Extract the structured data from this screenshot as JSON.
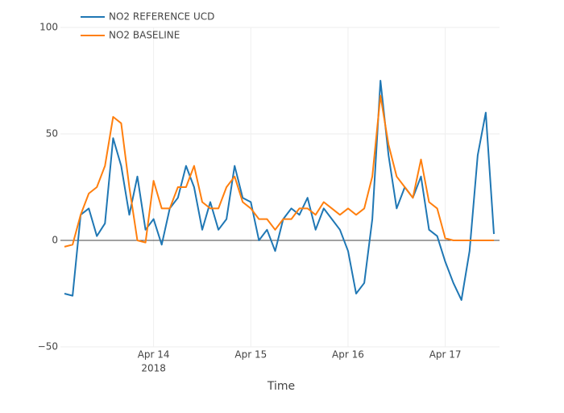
{
  "chart_data": {
    "type": "line",
    "xlabel": "Time",
    "x": [
      "2018-04-13 02:00",
      "2018-04-13 04:00",
      "2018-04-13 06:00",
      "2018-04-13 08:00",
      "2018-04-13 10:00",
      "2018-04-13 12:00",
      "2018-04-13 14:00",
      "2018-04-13 16:00",
      "2018-04-13 18:00",
      "2018-04-13 20:00",
      "2018-04-13 22:00",
      "2018-04-14 00:00",
      "2018-04-14 02:00",
      "2018-04-14 04:00",
      "2018-04-14 06:00",
      "2018-04-14 08:00",
      "2018-04-14 10:00",
      "2018-04-14 12:00",
      "2018-04-14 14:00",
      "2018-04-14 16:00",
      "2018-04-14 18:00",
      "2018-04-14 20:00",
      "2018-04-14 22:00",
      "2018-04-15 00:00",
      "2018-04-15 02:00",
      "2018-04-15 04:00",
      "2018-04-15 06:00",
      "2018-04-15 08:00",
      "2018-04-15 10:00",
      "2018-04-15 12:00",
      "2018-04-15 14:00",
      "2018-04-15 16:00",
      "2018-04-15 18:00",
      "2018-04-15 20:00",
      "2018-04-15 22:00",
      "2018-04-16 00:00",
      "2018-04-16 02:00",
      "2018-04-16 04:00",
      "2018-04-16 06:00",
      "2018-04-16 08:00",
      "2018-04-16 10:00",
      "2018-04-16 12:00",
      "2018-04-16 14:00",
      "2018-04-16 16:00",
      "2018-04-16 18:00",
      "2018-04-16 20:00",
      "2018-04-16 22:00",
      "2018-04-17 00:00",
      "2018-04-17 02:00",
      "2018-04-17 04:00",
      "2018-04-17 06:00",
      "2018-04-17 08:00",
      "2018-04-17 10:00",
      "2018-04-17 12:00"
    ],
    "series": [
      {
        "name": "NO2 REFERENCE UCD",
        "color": "#1f77b4",
        "values": [
          -25,
          -26,
          12,
          15,
          2,
          8,
          48,
          35,
          12,
          30,
          5,
          10,
          -2,
          15,
          20,
          35,
          25,
          5,
          18,
          5,
          10,
          35,
          20,
          18,
          0,
          5,
          -5,
          10,
          15,
          12,
          20,
          5,
          15,
          10,
          5,
          -5,
          -25,
          -20,
          10,
          75,
          40,
          15,
          25,
          20,
          30,
          5,
          2,
          -10,
          -20,
          -28,
          -5,
          40,
          60,
          3
        ]
      },
      {
        "name": "NO2 BASELINE",
        "color": "#ff7f0e",
        "values": [
          -3,
          -2,
          12,
          22,
          25,
          35,
          58,
          55,
          25,
          0,
          -1,
          28,
          15,
          15,
          25,
          25,
          35,
          18,
          15,
          15,
          25,
          30,
          18,
          15,
          10,
          10,
          5,
          10,
          10,
          15,
          15,
          12,
          18,
          15,
          12,
          15,
          12,
          15,
          30,
          68,
          45,
          30,
          25,
          20,
          38,
          18,
          15,
          1,
          0,
          0,
          0,
          0,
          0,
          0
        ]
      }
    ],
    "xlim": [
      "2018-04-13 01:00",
      "2018-04-17 13:24"
    ],
    "xticks": [
      {
        "value": "2018-04-14 00:00",
        "label": "Apr 14"
      },
      {
        "value": "2018-04-15 00:00",
        "label": "Apr 15"
      },
      {
        "value": "2018-04-16 00:00",
        "label": "Apr 16"
      },
      {
        "value": "2018-04-17 00:00",
        "label": "Apr 17"
      }
    ],
    "xtick_year": "2018",
    "ylim": [
      -50,
      100
    ],
    "yticks": [
      {
        "value": -50,
        "label": "−50"
      },
      0,
      50,
      100
    ],
    "grid": true,
    "zeroline": true,
    "legend": "top-left"
  }
}
